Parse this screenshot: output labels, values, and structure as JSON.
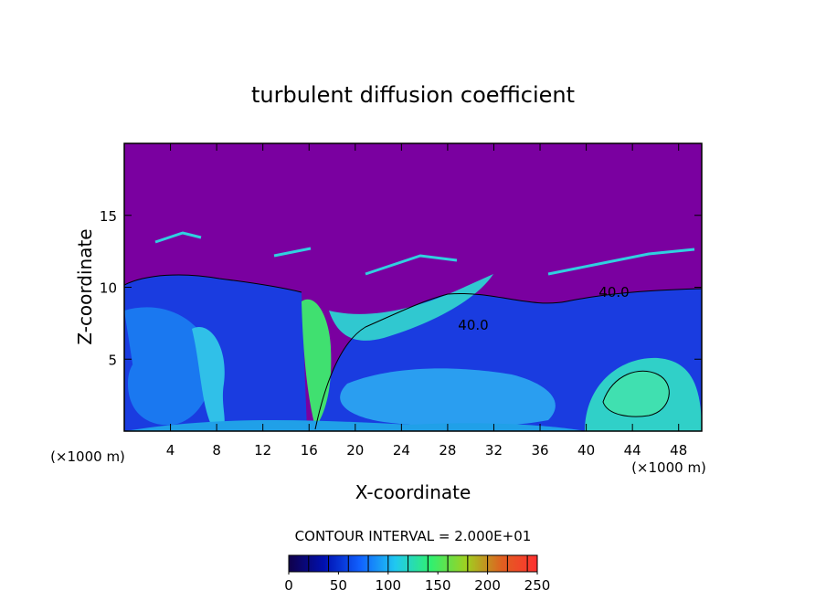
{
  "chart_data": {
    "type": "contour",
    "title": "turbulent diffusion coefficient",
    "x_label": "X-coordinate",
    "y_label": "Z-coordinate",
    "x_unit": "(×1000 m)",
    "y_unit": "(×1000 m)",
    "xlim": [
      0,
      50
    ],
    "xticks": [
      4,
      8,
      12,
      16,
      20,
      24,
      28,
      32,
      36,
      40,
      44,
      48
    ],
    "ylim": [
      0,
      20
    ],
    "yticks": [
      5,
      10,
      15
    ],
    "contour_interval": 20,
    "contour_interval_label": "CONTOUR INTERVAL = 2.000E+01",
    "colorbar": {
      "lim": [
        0,
        250
      ],
      "ticks": [
        0,
        50,
        100,
        150,
        200,
        250
      ],
      "colors": [
        "#10004a",
        "#0010b0",
        "#1060ff",
        "#20c8f0",
        "#30f070",
        "#a0d020",
        "#e06020",
        "#ff3030"
      ]
    },
    "contour_labels": [
      {
        "value": 40,
        "label": "40.0"
      },
      {
        "value": 40,
        "label": "40.0"
      }
    ]
  }
}
